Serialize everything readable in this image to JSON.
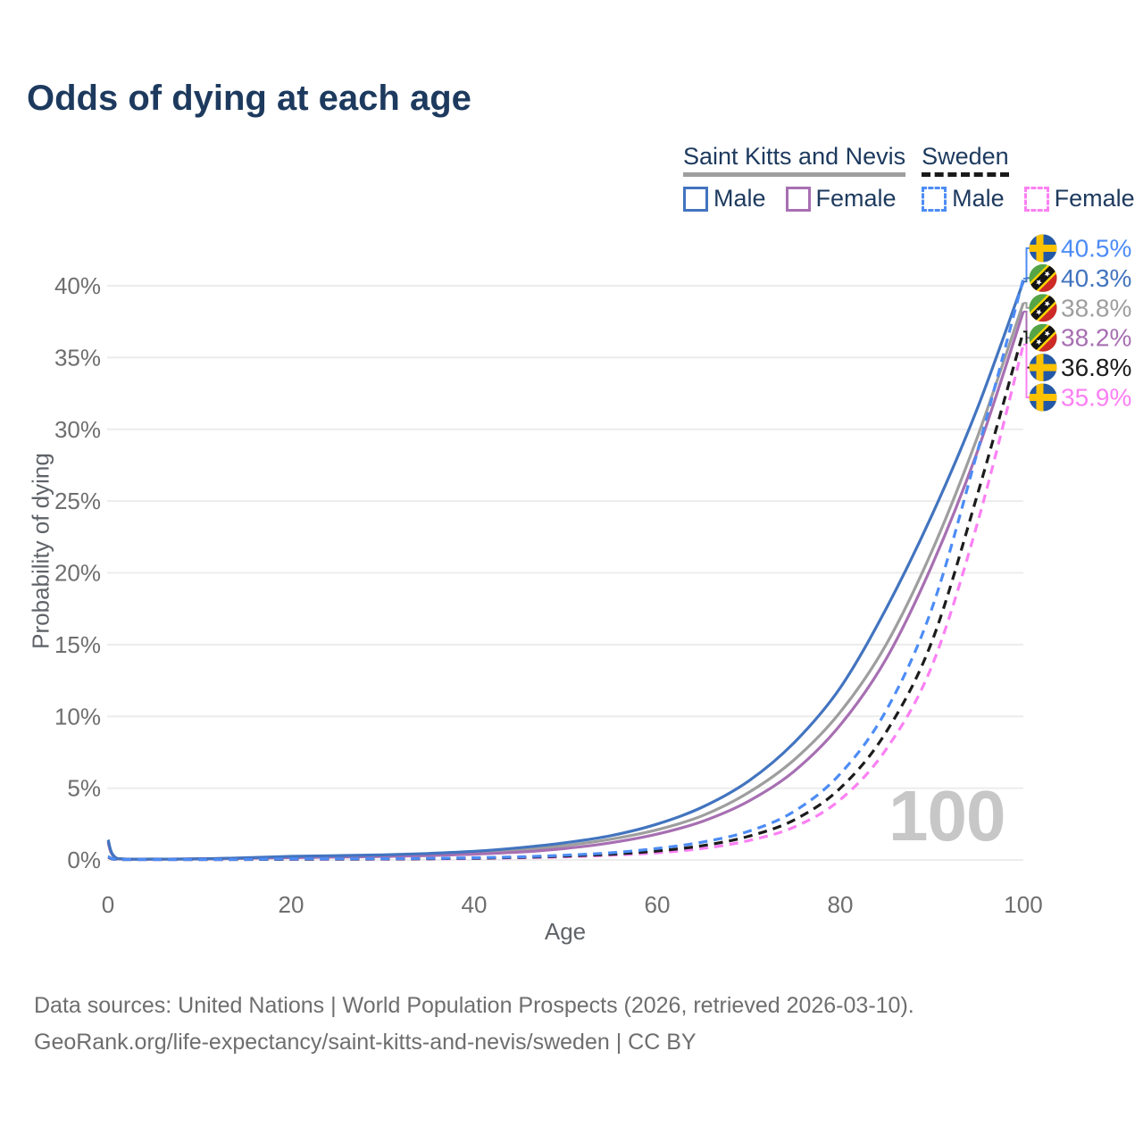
{
  "title": "Odds of dying at each age",
  "watermark": "100",
  "colors": {
    "title_text": "#1d3a5e",
    "grid": "#ececec",
    "tick_text": "#6e6e6e",
    "axis_title_text": "#5f6368",
    "watermark_text": "#c7c7c7",
    "footer_text": "#6e6e6e",
    "skn_male": "#4274bf",
    "skn_female": "#a76fb2",
    "skn_all": "#9e9e9e",
    "sweden_male": "#4d8cf5",
    "sweden_female": "#fb80f3",
    "sweden_all": "#1c1c1c"
  },
  "legend": {
    "groups": [
      {
        "name": "Saint Kitts and Nevis",
        "line_style": "solid",
        "underline_color": "#9e9e9e",
        "items": [
          {
            "label": "Male",
            "series": "skn-male"
          },
          {
            "label": "Female",
            "series": "skn-female"
          }
        ]
      },
      {
        "name": "Sweden",
        "line_style": "dashed",
        "underline_color": "#1a1a1a",
        "items": [
          {
            "label": "Male",
            "series": "sweden-male"
          },
          {
            "label": "Female",
            "series": "sweden-female"
          }
        ]
      }
    ]
  },
  "chart_data": {
    "type": "line",
    "title": "Odds of dying at each age",
    "xlabel": "Age",
    "ylabel": "Probability of dying",
    "xlim": [
      0,
      100
    ],
    "ylim_pct": [
      0,
      42
    ],
    "grid": "horizontal-only",
    "legend_position": "top-right",
    "xticks": [
      {
        "value": 0,
        "label": "0"
      },
      {
        "value": 20,
        "label": "20"
      },
      {
        "value": 40,
        "label": "40"
      },
      {
        "value": 60,
        "label": "60"
      },
      {
        "value": 80,
        "label": "80"
      },
      {
        "value": 100,
        "label": "100"
      }
    ],
    "yticks": [
      {
        "value": 0,
        "label": "0%"
      },
      {
        "value": 5,
        "label": "5%"
      },
      {
        "value": 10,
        "label": "10%"
      },
      {
        "value": 15,
        "label": "15%"
      },
      {
        "value": 20,
        "label": "20%"
      },
      {
        "value": 25,
        "label": "25%"
      },
      {
        "value": 30,
        "label": "30%"
      },
      {
        "value": 35,
        "label": "35%"
      },
      {
        "value": 40,
        "label": "40%"
      }
    ],
    "x_ages": [
      0,
      1,
      5,
      10,
      15,
      20,
      25,
      30,
      35,
      40,
      45,
      50,
      55,
      60,
      65,
      70,
      75,
      80,
      85,
      90,
      95,
      100
    ],
    "series": [
      {
        "id": "skn-all",
        "country": "Saint Kitts and Nevis",
        "sex": "all",
        "color": "#9e9e9e",
        "dashed": false,
        "flag": "kn",
        "end_label": "38.8%",
        "end_value": 38.8,
        "values_pct": [
          1.3,
          0.09,
          0.05,
          0.07,
          0.12,
          0.2,
          0.25,
          0.3,
          0.38,
          0.5,
          0.7,
          1.0,
          1.45,
          2.1,
          3.1,
          4.7,
          7.0,
          10.3,
          15.0,
          21.5,
          29.5,
          38.8
        ]
      },
      {
        "id": "skn-female",
        "country": "Saint Kitts and Nevis",
        "sex": "female",
        "color": "#a76fb2",
        "dashed": false,
        "flag": "kn",
        "end_label": "38.2%",
        "end_value": 38.2,
        "values_pct": [
          1.2,
          0.08,
          0.05,
          0.07,
          0.11,
          0.16,
          0.2,
          0.24,
          0.3,
          0.4,
          0.55,
          0.8,
          1.2,
          1.8,
          2.7,
          4.1,
          6.2,
          9.4,
          14.0,
          20.5,
          28.5,
          38.2
        ]
      },
      {
        "id": "skn-male",
        "country": "Saint Kitts and Nevis",
        "sex": "male",
        "color": "#4274bf",
        "dashed": false,
        "flag": "kn",
        "end_label": "40.3%",
        "end_value": 40.3,
        "values_pct": [
          1.4,
          0.1,
          0.06,
          0.08,
          0.15,
          0.25,
          0.3,
          0.35,
          0.45,
          0.6,
          0.85,
          1.2,
          1.7,
          2.5,
          3.7,
          5.5,
          8.2,
          12.0,
          17.5,
          24.0,
          31.5,
          40.3
        ]
      },
      {
        "id": "sweden-female",
        "country": "Sweden",
        "sex": "female",
        "color": "#fb80f3",
        "dashed": true,
        "flag": "se",
        "end_label": "35.9%",
        "end_value": 35.9,
        "values_pct": [
          0.2,
          0.015,
          0.012,
          0.015,
          0.025,
          0.04,
          0.05,
          0.055,
          0.07,
          0.1,
          0.15,
          0.22,
          0.33,
          0.5,
          0.8,
          1.35,
          2.3,
          4.2,
          7.7,
          13.5,
          23.5,
          35.9
        ]
      },
      {
        "id": "sweden-all",
        "country": "Sweden",
        "sex": "all",
        "color": "#1c1c1c",
        "dashed": true,
        "flag": "se",
        "end_label": "36.8%",
        "end_value": 36.8,
        "values_pct": [
          0.22,
          0.018,
          0.013,
          0.018,
          0.03,
          0.05,
          0.06,
          0.07,
          0.09,
          0.12,
          0.18,
          0.27,
          0.4,
          0.62,
          1.0,
          1.65,
          2.8,
          5.0,
          8.9,
          15.2,
          25.5,
          36.8
        ]
      },
      {
        "id": "sweden-male",
        "country": "Sweden",
        "sex": "male",
        "color": "#4d8cf5",
        "dashed": true,
        "flag": "se",
        "end_label": "40.5%",
        "end_value": 40.5,
        "values_pct": [
          0.25,
          0.02,
          0.015,
          0.02,
          0.04,
          0.07,
          0.08,
          0.09,
          0.11,
          0.15,
          0.22,
          0.33,
          0.5,
          0.8,
          1.25,
          2.0,
          3.4,
          6.0,
          10.4,
          17.5,
          28.5,
          40.5
        ]
      }
    ],
    "flags": {
      "se": "sweden-flag-icon",
      "kn": "saint-kitts-and-nevis-flag-icon"
    },
    "watermark": "100"
  },
  "footer": {
    "line1": "Data sources: United Nations | World Population Prospects (2026, retrieved 2026-03-10).",
    "line2": "GeoRank.org/life-expectancy/saint-kitts-and-nevis/sweden | CC BY"
  }
}
